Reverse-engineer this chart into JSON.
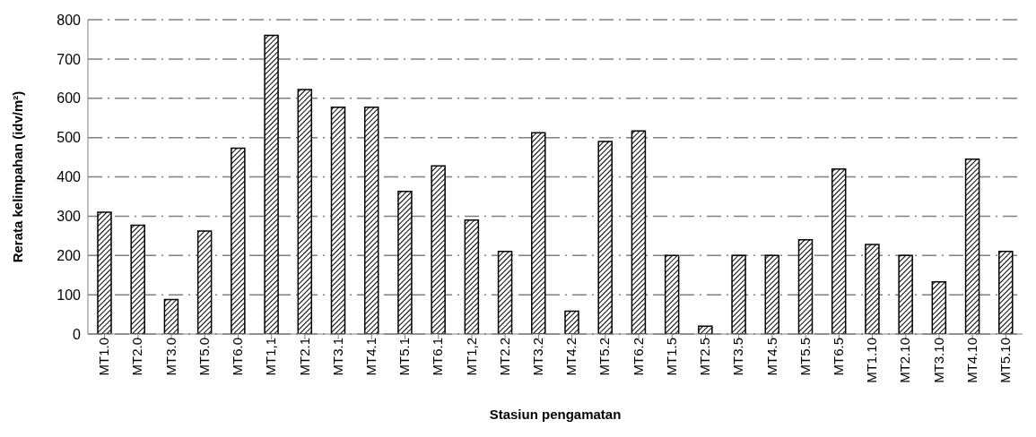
{
  "chart_data": {
    "type": "bar",
    "xlabel": "Stasiun pengamatan",
    "ylabel": "Rerata kelimpahan (idv/m²)",
    "categories": [
      "MT1.0",
      "MT2.0",
      "MT3.0",
      "MT5.0",
      "MT6.0",
      "MT1,1",
      "MT2.1",
      "MT3.1",
      "MT4.1",
      "MT5.1",
      "MT6.1",
      "MT1,2",
      "MT2.2",
      "MT3.2",
      "MT4.2",
      "MT5.2",
      "MT6.2",
      "MT1.5",
      "MT2.5",
      "MT3.5",
      "MT4.5",
      "MT5.5",
      "MT6.5",
      "MT1.10",
      "MT2.10",
      "MT3.10",
      "MT4.10",
      "MT5.10"
    ],
    "values": [
      310,
      277,
      88,
      262,
      473,
      760,
      622,
      577,
      577,
      363,
      428,
      290,
      210,
      512,
      58,
      490,
      517,
      200,
      20,
      200,
      200,
      240,
      420,
      228,
      200,
      133,
      445,
      210
    ],
    "color": "#000000",
    "ylim": [
      0,
      800
    ],
    "yticks": [
      0,
      100,
      200,
      300,
      400,
      500,
      600,
      700,
      800
    ],
    "grid": "y"
  }
}
